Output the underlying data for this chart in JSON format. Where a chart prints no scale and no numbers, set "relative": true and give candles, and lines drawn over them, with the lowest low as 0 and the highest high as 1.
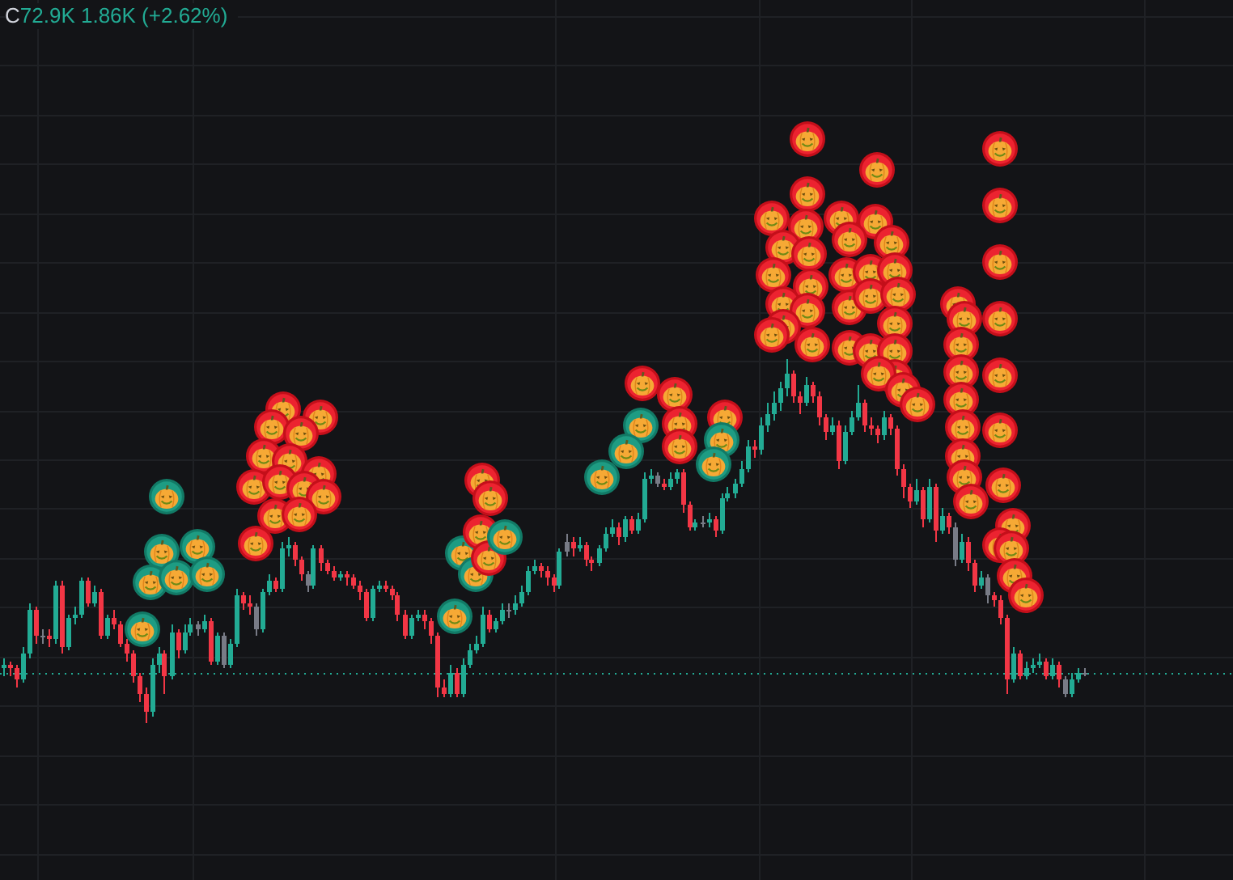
{
  "chart_data": {
    "type": "candlestick",
    "relative": true,
    "grid": true,
    "annotations": [
      "C",
      "72.9K 1.86K (+2.62%)"
    ],
    "categories": [
      null,
      null,
      null,
      null,
      null,
      null,
      null,
      null,
      null,
      null,
      null,
      null,
      null,
      null,
      null,
      null,
      null,
      null,
      null,
      null,
      null,
      null,
      null,
      null,
      null,
      null,
      null,
      null,
      null,
      null,
      null,
      null,
      null,
      null,
      null,
      null,
      null,
      null,
      null,
      null,
      null,
      null,
      null,
      null,
      null,
      null,
      null,
      null,
      null,
      null,
      null,
      null,
      null,
      null,
      null,
      null,
      null,
      null,
      null,
      null,
      null,
      null,
      null,
      null,
      null,
      null,
      null,
      null,
      null,
      null,
      null,
      null,
      null,
      null,
      null,
      null,
      null,
      null,
      null,
      null,
      null,
      null,
      null,
      null,
      null,
      null,
      null,
      null,
      null,
      null,
      null,
      null,
      null,
      null,
      null,
      null,
      null,
      null,
      null,
      null,
      null,
      null,
      null,
      null,
      null,
      null,
      null,
      null,
      null,
      null,
      null,
      null,
      null,
      null,
      null,
      null,
      null,
      null,
      null,
      null,
      null,
      null,
      null,
      null,
      null,
      null,
      null,
      null,
      null,
      null,
      null,
      null,
      null,
      null,
      null,
      null,
      null,
      null,
      null,
      null,
      null,
      null,
      null,
      null,
      null,
      null,
      null,
      null,
      null,
      null,
      null,
      null,
      null,
      null,
      null,
      null,
      null,
      null,
      null,
      null,
      null,
      null,
      null,
      null,
      null,
      null,
      null,
      null
    ],
    "ohlc": [
      [
        0.15,
        0.18,
        0.13,
        0.16
      ],
      [
        0.16,
        0.17,
        0.13,
        0.15
      ],
      [
        0.15,
        0.16,
        0.1,
        0.12
      ],
      [
        0.12,
        0.21,
        0.11,
        0.19
      ],
      [
        0.19,
        0.33,
        0.18,
        0.31
      ],
      [
        0.31,
        0.32,
        0.22,
        0.24
      ],
      [
        0.24,
        0.26,
        0.22,
        0.24
      ],
      [
        0.24,
        0.26,
        0.21,
        0.23
      ],
      [
        0.23,
        0.39,
        0.22,
        0.38
      ],
      [
        0.38,
        0.39,
        0.19,
        0.21
      ],
      [
        0.21,
        0.3,
        0.2,
        0.29
      ],
      [
        0.29,
        0.32,
        0.27,
        0.3
      ],
      [
        0.3,
        0.4,
        0.29,
        0.39
      ],
      [
        0.39,
        0.4,
        0.32,
        0.33
      ],
      [
        0.33,
        0.38,
        0.32,
        0.36
      ],
      [
        0.36,
        0.37,
        0.23,
        0.24
      ],
      [
        0.24,
        0.3,
        0.23,
        0.29
      ],
      [
        0.29,
        0.31,
        0.26,
        0.27
      ],
      [
        0.27,
        0.28,
        0.21,
        0.22
      ],
      [
        0.22,
        0.23,
        0.17,
        0.19
      ],
      [
        0.19,
        0.2,
        0.11,
        0.13
      ],
      [
        0.13,
        0.14,
        0.06,
        0.08
      ],
      [
        0.08,
        0.1,
        0,
        0.03
      ],
      [
        0.03,
        0.18,
        0.02,
        0.16
      ],
      [
        0.16,
        0.21,
        0.14,
        0.19
      ],
      [
        0.19,
        0.2,
        0.08,
        0.13
      ],
      [
        0.13,
        0.27,
        0.12,
        0.25
      ],
      [
        0.25,
        0.26,
        0.18,
        0.2
      ],
      [
        0.2,
        0.27,
        0.19,
        0.25
      ],
      [
        0.25,
        0.29,
        0.24,
        0.27
      ],
      [
        0.27,
        0.28,
        0.24,
        0.26
      ],
      [
        0.26,
        0.3,
        0.25,
        0.28
      ],
      [
        0.28,
        0.29,
        0.16,
        0.17
      ],
      [
        0.17,
        0.25,
        0.16,
        0.24
      ],
      [
        0.24,
        0.25,
        0.15,
        0.16
      ],
      [
        0.16,
        0.23,
        0.15,
        0.22
      ],
      [
        0.22,
        0.37,
        0.21,
        0.35
      ],
      [
        0.35,
        0.36,
        0.31,
        0.33
      ],
      [
        0.33,
        0.35,
        0.3,
        0.32
      ],
      [
        0.32,
        0.33,
        0.24,
        0.26
      ],
      [
        0.26,
        0.37,
        0.25,
        0.36
      ],
      [
        0.36,
        0.41,
        0.35,
        0.39
      ],
      [
        0.39,
        0.4,
        0.36,
        0.37
      ],
      [
        0.37,
        0.5,
        0.36,
        0.48
      ],
      [
        0.48,
        0.51,
        0.46,
        0.49
      ],
      [
        0.49,
        0.5,
        0.43,
        0.45
      ],
      [
        0.45,
        0.46,
        0.39,
        0.41
      ],
      [
        0.41,
        0.42,
        0.36,
        0.38
      ],
      [
        0.38,
        0.49,
        0.37,
        0.48
      ],
      [
        0.48,
        0.49,
        0.42,
        0.44
      ],
      [
        0.44,
        0.45,
        0.41,
        0.42
      ],
      [
        0.42,
        0.43,
        0.39,
        0.4
      ],
      [
        0.4,
        0.42,
        0.39,
        0.41
      ],
      [
        0.41,
        0.42,
        0.38,
        0.4
      ],
      [
        0.4,
        0.41,
        0.37,
        0.38
      ],
      [
        0.38,
        0.39,
        0.34,
        0.36
      ],
      [
        0.36,
        0.37,
        0.28,
        0.29
      ],
      [
        0.29,
        0.38,
        0.28,
        0.37
      ],
      [
        0.37,
        0.39,
        0.36,
        0.38
      ],
      [
        0.38,
        0.39,
        0.36,
        0.37
      ],
      [
        0.37,
        0.38,
        0.34,
        0.35
      ],
      [
        0.35,
        0.36,
        0.28,
        0.3
      ],
      [
        0.3,
        0.31,
        0.23,
        0.24
      ],
      [
        0.24,
        0.3,
        0.23,
        0.29
      ],
      [
        0.29,
        0.31,
        0.28,
        0.3
      ],
      [
        0.3,
        0.31,
        0.26,
        0.28
      ],
      [
        0.28,
        0.29,
        0.22,
        0.24
      ],
      [
        0.24,
        0.25,
        0.07,
        0.1
      ],
      [
        0.1,
        0.12,
        0.07,
        0.08
      ],
      [
        0.08,
        0.16,
        0.07,
        0.14
      ],
      [
        0.14,
        0.15,
        0.07,
        0.08
      ],
      [
        0.08,
        0.18,
        0.07,
        0.16
      ],
      [
        0.16,
        0.22,
        0.15,
        0.2
      ],
      [
        0.2,
        0.24,
        0.19,
        0.22
      ],
      [
        0.22,
        0.32,
        0.21,
        0.3
      ],
      [
        0.3,
        0.31,
        0.25,
        0.26
      ],
      [
        0.26,
        0.29,
        0.25,
        0.28
      ],
      [
        0.28,
        0.33,
        0.27,
        0.31
      ],
      [
        0.31,
        0.33,
        0.29,
        0.31
      ],
      [
        0.31,
        0.35,
        0.3,
        0.33
      ],
      [
        0.33,
        0.38,
        0.32,
        0.36
      ],
      [
        0.36,
        0.43,
        0.35,
        0.42
      ],
      [
        0.42,
        0.45,
        0.41,
        0.43
      ],
      [
        0.43,
        0.44,
        0.4,
        0.42
      ],
      [
        0.42,
        0.43,
        0.38,
        0.4
      ],
      [
        0.4,
        0.41,
        0.36,
        0.38
      ],
      [
        0.38,
        0.48,
        0.37,
        0.47
      ],
      [
        0.47,
        0.52,
        0.46,
        0.5
      ],
      [
        0.5,
        0.51,
        0.46,
        0.48
      ],
      [
        0.48,
        0.51,
        0.47,
        0.49
      ],
      [
        0.49,
        0.5,
        0.43,
        0.45
      ],
      [
        0.45,
        0.46,
        0.42,
        0.44
      ],
      [
        0.44,
        0.49,
        0.43,
        0.48
      ],
      [
        0.48,
        0.54,
        0.47,
        0.52
      ],
      [
        0.52,
        0.56,
        0.51,
        0.54
      ],
      [
        0.54,
        0.55,
        0.49,
        0.51
      ],
      [
        0.51,
        0.57,
        0.5,
        0.56
      ],
      [
        0.56,
        0.57,
        0.52,
        0.53
      ],
      [
        0.53,
        0.58,
        0.52,
        0.56
      ],
      [
        0.56,
        0.69,
        0.55,
        0.67
      ],
      [
        0.67,
        0.7,
        0.66,
        0.68
      ],
      [
        0.68,
        0.69,
        0.65,
        0.66
      ],
      [
        0.66,
        0.67,
        0.64,
        0.65
      ],
      [
        0.65,
        0.69,
        0.64,
        0.67
      ],
      [
        0.67,
        0.7,
        0.66,
        0.69
      ],
      [
        0.69,
        0.7,
        0.58,
        0.6
      ],
      [
        0.6,
        0.61,
        0.53,
        0.54
      ],
      [
        0.54,
        0.56,
        0.53,
        0.55
      ],
      [
        0.55,
        0.57,
        0.54,
        0.55
      ],
      [
        0.55,
        0.58,
        0.54,
        0.56
      ],
      [
        0.56,
        0.57,
        0.51,
        0.53
      ],
      [
        0.53,
        0.63,
        0.52,
        0.62
      ],
      [
        0.62,
        0.65,
        0.61,
        0.63
      ],
      [
        0.63,
        0.67,
        0.62,
        0.66
      ],
      [
        0.66,
        0.72,
        0.65,
        0.7
      ],
      [
        0.7,
        0.78,
        0.69,
        0.76
      ],
      [
        0.76,
        0.78,
        0.73,
        0.75
      ],
      [
        0.75,
        0.84,
        0.74,
        0.82
      ],
      [
        0.82,
        0.88,
        0.8,
        0.85
      ],
      [
        0.85,
        0.91,
        0.83,
        0.88
      ],
      [
        0.88,
        0.94,
        0.86,
        0.92
      ],
      [
        0.92,
        1,
        0.9,
        0.96
      ],
      [
        0.96,
        0.97,
        0.88,
        0.9
      ],
      [
        0.9,
        0.91,
        0.85,
        0.88
      ],
      [
        0.88,
        0.95,
        0.87,
        0.93
      ],
      [
        0.93,
        0.94,
        0.88,
        0.9
      ],
      [
        0.9,
        0.91,
        0.82,
        0.84
      ],
      [
        0.84,
        0.85,
        0.78,
        0.8
      ],
      [
        0.8,
        0.84,
        0.79,
        0.82
      ],
      [
        0.82,
        0.83,
        0.7,
        0.72
      ],
      [
        0.72,
        0.82,
        0.71,
        0.8
      ],
      [
        0.8,
        0.86,
        0.79,
        0.84
      ],
      [
        0.84,
        0.93,
        0.83,
        0.88
      ],
      [
        0.88,
        0.89,
        0.8,
        0.82
      ],
      [
        0.82,
        0.84,
        0.79,
        0.81
      ],
      [
        0.81,
        0.82,
        0.77,
        0.79
      ],
      [
        0.79,
        0.86,
        0.78,
        0.84
      ],
      [
        0.84,
        0.85,
        0.79,
        0.81
      ],
      [
        0.81,
        0.82,
        0.68,
        0.7
      ],
      [
        0.7,
        0.71,
        0.62,
        0.65
      ],
      [
        0.65,
        0.66,
        0.59,
        0.61
      ],
      [
        0.61,
        0.67,
        0.6,
        0.64
      ],
      [
        0.64,
        0.65,
        0.54,
        0.56
      ],
      [
        0.56,
        0.67,
        0.55,
        0.65
      ],
      [
        0.65,
        0.66,
        0.5,
        0.53
      ],
      [
        0.53,
        0.59,
        0.52,
        0.57
      ],
      [
        0.57,
        0.58,
        0.52,
        0.54
      ],
      [
        0.54,
        0.55,
        0.43,
        0.45
      ],
      [
        0.45,
        0.52,
        0.44,
        0.5
      ],
      [
        0.5,
        0.51,
        0.42,
        0.44
      ],
      [
        0.44,
        0.45,
        0.36,
        0.38
      ],
      [
        0.38,
        0.42,
        0.37,
        0.4
      ],
      [
        0.4,
        0.41,
        0.33,
        0.35
      ],
      [
        0.35,
        0.36,
        0.32,
        0.34
      ],
      [
        0.34,
        0.35,
        0.27,
        0.29
      ],
      [
        0.29,
        0.3,
        0.08,
        0.12
      ],
      [
        0.12,
        0.21,
        0.11,
        0.19
      ],
      [
        0.19,
        0.2,
        0.12,
        0.13
      ],
      [
        0.13,
        0.17,
        0.12,
        0.15
      ],
      [
        0.15,
        0.18,
        0.14,
        0.16
      ],
      [
        0.16,
        0.19,
        0.15,
        0.17
      ],
      [
        0.17,
        0.18,
        0.12,
        0.13
      ],
      [
        0.13,
        0.18,
        0.12,
        0.16
      ],
      [
        0.16,
        0.17,
        0.1,
        0.12
      ],
      [
        0.12,
        0.13,
        0.07,
        0.08
      ],
      [
        0.08,
        0.14,
        0.07,
        0.12
      ],
      [
        0.12,
        0.15,
        0.11,
        0.14
      ],
      [
        0.14,
        0.15,
        0.13,
        0.14
      ]
    ],
    "colors": [
      "#22ab94",
      "#f23645",
      "#f23645",
      "#22ab94",
      "#22ab94",
      "#f23645",
      "#787b86",
      "#f23645",
      "#22ab94",
      "#f23645",
      "#22ab94",
      "#22ab94",
      "#22ab94",
      "#f23645",
      "#22ab94",
      "#f23645",
      "#22ab94",
      "#f23645",
      "#f23645",
      "#f23645",
      "#f23645",
      "#f23645",
      "#f23645",
      "#22ab94",
      "#22ab94",
      "#f23645",
      "#22ab94",
      "#f23645",
      "#22ab94",
      "#22ab94",
      "#787b86",
      "#22ab94",
      "#f23645",
      "#22ab94",
      "#787b86",
      "#22ab94",
      "#22ab94",
      "#f23645",
      "#f23645",
      "#787b86",
      "#22ab94",
      "#22ab94",
      "#f23645",
      "#22ab94",
      "#22ab94",
      "#f23645",
      "#f23645",
      "#787b86",
      "#22ab94",
      "#f23645",
      "#f23645",
      "#f23645",
      "#22ab94",
      "#f23645",
      "#f23645",
      "#f23645",
      "#f23645",
      "#22ab94",
      "#22ab94",
      "#f23645",
      "#f23645",
      "#f23645",
      "#f23645",
      "#22ab94",
      "#22ab94",
      "#f23645",
      "#f23645",
      "#f23645",
      "#f23645",
      "#22ab94",
      "#f23645",
      "#22ab94",
      "#22ab94",
      "#22ab94",
      "#22ab94",
      "#f23645",
      "#22ab94",
      "#22ab94",
      "#787b86",
      "#22ab94",
      "#22ab94",
      "#22ab94",
      "#22ab94",
      "#f23645",
      "#f23645",
      "#f23645",
      "#22ab94",
      "#787b86",
      "#f23645",
      "#22ab94",
      "#f23645",
      "#f23645",
      "#22ab94",
      "#22ab94",
      "#22ab94",
      "#f23645",
      "#22ab94",
      "#f23645",
      "#22ab94",
      "#22ab94",
      "#22ab94",
      "#787b86",
      "#f23645",
      "#22ab94",
      "#22ab94",
      "#f23645",
      "#f23645",
      "#22ab94",
      "#787b86",
      "#22ab94",
      "#f23645",
      "#22ab94",
      "#22ab94",
      "#22ab94",
      "#22ab94",
      "#22ab94",
      "#f23645",
      "#22ab94",
      "#22ab94",
      "#22ab94",
      "#22ab94",
      "#22ab94",
      "#f23645",
      "#f23645",
      "#22ab94",
      "#f23645",
      "#f23645",
      "#f23645",
      "#22ab94",
      "#f23645",
      "#22ab94",
      "#22ab94",
      "#22ab94",
      "#f23645",
      "#f23645",
      "#f23645",
      "#22ab94",
      "#f23645",
      "#f23645",
      "#f23645",
      "#f23645",
      "#22ab94",
      "#f23645",
      "#22ab94",
      "#f23645",
      "#22ab94",
      "#f23645",
      "#787b86",
      "#22ab94",
      "#f23645",
      "#f23645",
      "#22ab94",
      "#787b86",
      "#f23645",
      "#f23645",
      "#f23645",
      "#22ab94",
      "#f23645",
      "#22ab94",
      "#22ab94",
      "#22ab94",
      "#f23645",
      "#22ab94",
      "#f23645",
      "#787b86",
      "#22ab94",
      "#22ab94",
      "#787b86"
    ],
    "ref_lines": [
      {
        "axis": "y",
        "value": 0.14,
        "color": "#22ab94",
        "line_style": "dotted"
      }
    ]
  }
}
